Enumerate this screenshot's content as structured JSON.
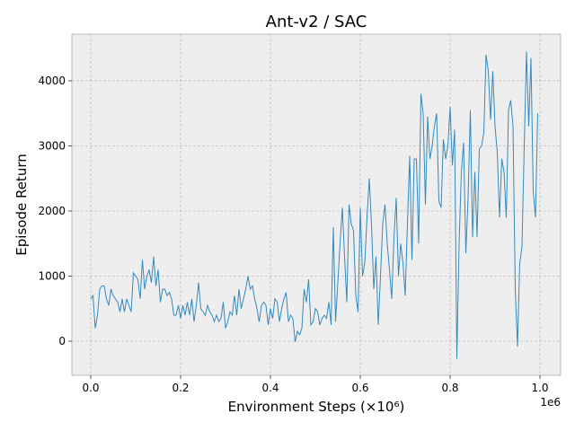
{
  "chart_data": {
    "type": "line",
    "title": "Ant-v2 / SAC",
    "x_label": "Environment Steps (×10⁶)",
    "y_label": "Episode Return",
    "x_offset_label": "1e6",
    "x": [
      0,
      0.005,
      0.01,
      0.015,
      0.02,
      0.025,
      0.03,
      0.035,
      0.04,
      0.045,
      0.05,
      0.055,
      0.06,
      0.065,
      0.07,
      0.075,
      0.08,
      0.085,
      0.09,
      0.095,
      0.1,
      0.105,
      0.11,
      0.115,
      0.12,
      0.125,
      0.13,
      0.135,
      0.14,
      0.145,
      0.15,
      0.155,
      0.16,
      0.165,
      0.17,
      0.175,
      0.18,
      0.185,
      0.19,
      0.195,
      0.2,
      0.205,
      0.21,
      0.215,
      0.22,
      0.225,
      0.23,
      0.235,
      0.24,
      0.245,
      0.25,
      0.255,
      0.26,
      0.265,
      0.27,
      0.275,
      0.28,
      0.285,
      0.29,
      0.295,
      0.3,
      0.305,
      0.31,
      0.315,
      0.32,
      0.325,
      0.33,
      0.335,
      0.34,
      0.345,
      0.35,
      0.355,
      0.36,
      0.365,
      0.37,
      0.375,
      0.38,
      0.385,
      0.39,
      0.395,
      0.4,
      0.405,
      0.41,
      0.415,
      0.42,
      0.425,
      0.43,
      0.435,
      0.44,
      0.445,
      0.45,
      0.455,
      0.46,
      0.465,
      0.47,
      0.475,
      0.48,
      0.485,
      0.49,
      0.495,
      0.5,
      0.505,
      0.51,
      0.515,
      0.52,
      0.525,
      0.53,
      0.535,
      0.54,
      0.545,
      0.55,
      0.555,
      0.56,
      0.565,
      0.57,
      0.575,
      0.58,
      0.585,
      0.59,
      0.595,
      0.6,
      0.605,
      0.61,
      0.615,
      0.62,
      0.625,
      0.63,
      0.635,
      0.64,
      0.645,
      0.65,
      0.655,
      0.66,
      0.665,
      0.67,
      0.675,
      0.68,
      0.685,
      0.69,
      0.695,
      0.7,
      0.705,
      0.71,
      0.715,
      0.72,
      0.725,
      0.73,
      0.735,
      0.74,
      0.745,
      0.75,
      0.755,
      0.76,
      0.765,
      0.77,
      0.775,
      0.78,
      0.785,
      0.79,
      0.795,
      0.8,
      0.805,
      0.81,
      0.815,
      0.82,
      0.825,
      0.83,
      0.835,
      0.84,
      0.845,
      0.85,
      0.855,
      0.86,
      0.865,
      0.87,
      0.875,
      0.88,
      0.885,
      0.89,
      0.895,
      0.9,
      0.905,
      0.91,
      0.915,
      0.92,
      0.925,
      0.93,
      0.935,
      0.94,
      0.945,
      0.95,
      0.955,
      0.96,
      0.965,
      0.97,
      0.975,
      0.98,
      0.985,
      0.99,
      0.995
    ],
    "series": [
      {
        "name": "SAC",
        "color": "#348abd",
        "values": [
          650,
          700,
          200,
          400,
          800,
          850,
          850,
          650,
          550,
          800,
          700,
          650,
          600,
          450,
          650,
          450,
          650,
          550,
          450,
          1050,
          1000,
          950,
          650,
          1250,
          800,
          1000,
          1100,
          900,
          1300,
          850,
          1100,
          600,
          800,
          800,
          700,
          750,
          650,
          400,
          400,
          550,
          350,
          550,
          400,
          600,
          400,
          650,
          300,
          550,
          900,
          500,
          450,
          400,
          550,
          450,
          400,
          300,
          400,
          300,
          350,
          600,
          200,
          300,
          450,
          400,
          700,
          400,
          800,
          500,
          650,
          800,
          1000,
          800,
          850,
          650,
          500,
          300,
          550,
          600,
          550,
          250,
          500,
          350,
          650,
          600,
          300,
          500,
          650,
          750,
          300,
          400,
          350,
          -10,
          150,
          100,
          200,
          800,
          600,
          950,
          250,
          300,
          500,
          450,
          250,
          350,
          400,
          350,
          600,
          250,
          1750,
          300,
          900,
          1500,
          2050,
          1300,
          600,
          2100,
          1800,
          1700,
          700,
          450,
          2050,
          1000,
          1200,
          1900,
          2500,
          1800,
          800,
          1300,
          250,
          1000,
          1800,
          2100,
          1500,
          1100,
          650,
          1600,
          2200,
          1000,
          1500,
          1200,
          700,
          1800,
          2850,
          1250,
          2800,
          2800,
          1500,
          3800,
          3500,
          2100,
          3450,
          2800,
          3000,
          3300,
          3500,
          2150,
          2050,
          3100,
          2800,
          3000,
          3600,
          2700,
          3250,
          -270,
          1500,
          2600,
          3050,
          1350,
          2200,
          3550,
          1600,
          2600,
          1600,
          2950,
          3000,
          3200,
          4400,
          4150,
          3400,
          4150,
          3300,
          2900,
          1900,
          2800,
          2600,
          1900,
          3550,
          3700,
          3300,
          800,
          -80,
          1200,
          1450,
          3000,
          4450,
          3300,
          4350,
          2300,
          1900,
          3500
        ]
      }
    ],
    "xlim": [
      -0.042,
      1.046
    ],
    "ylim": [
      -524,
      4717
    ],
    "xticks": [
      {
        "value": 0,
        "label": "0.0"
      },
      {
        "value": 0.2,
        "label": "0.2"
      },
      {
        "value": 0.4,
        "label": "0.4"
      },
      {
        "value": 0.6,
        "label": "0.6"
      },
      {
        "value": 0.8,
        "label": "0.8"
      },
      {
        "value": 1,
        "label": "1.0"
      }
    ],
    "yticks": [
      0,
      1000,
      2000,
      3000,
      4000
    ],
    "grid": true,
    "background": "#eeeeee"
  }
}
